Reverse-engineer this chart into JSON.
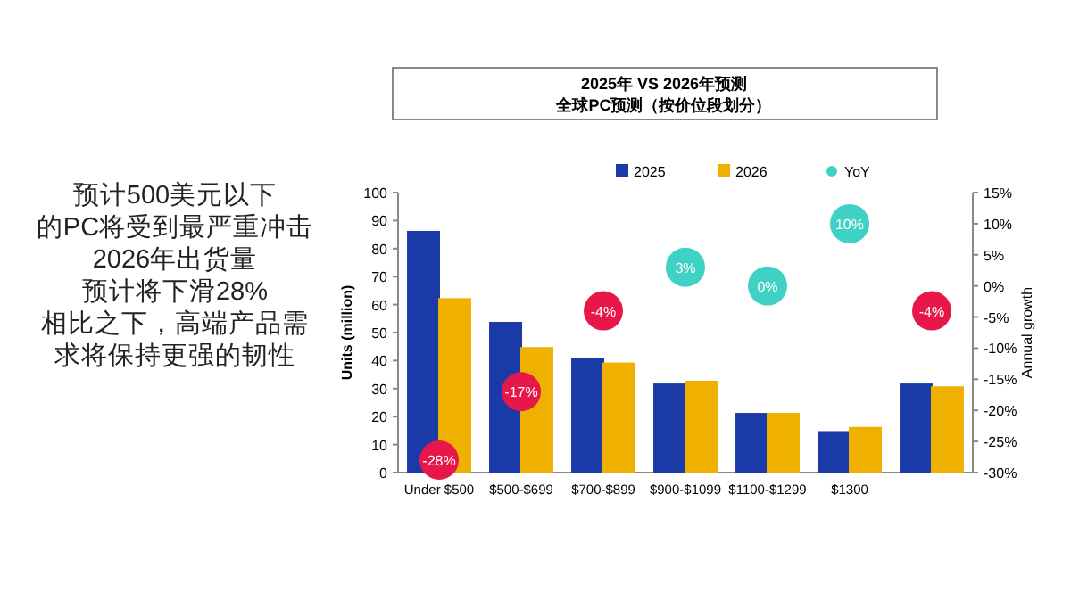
{
  "chart_data": {
    "type": "bar",
    "title": "2025年 VS 2026年预测",
    "subtitle": "全球PC预测（按价位段划分）",
    "categories": [
      "Under $500",
      "$500-$699",
      "$700-$899",
      "$900-$1099",
      "$1100-$1299",
      "$1300",
      null
    ],
    "series": [
      {
        "name": "2025",
        "color": "#1a3aa8",
        "values": [
          86,
          53.5,
          40.5,
          31.5,
          21,
          14.5,
          31.5
        ]
      },
      {
        "name": "2026",
        "color": "#f0b000",
        "values": [
          62,
          44.5,
          39,
          32.5,
          21,
          16,
          30.5
        ]
      },
      {
        "name": "YoY",
        "type": "scatter",
        "axis": "y2",
        "color": "#3fd1c4",
        "colors": [
          "#e8174a",
          "#e8174a",
          "#e8174a",
          "#3fd1c4",
          "#3fd1c4",
          "#3fd1c4",
          "#e8174a"
        ],
        "values": [
          -28,
          -17,
          -4,
          3,
          0,
          10,
          -4
        ],
        "value_labels": [
          "-28%",
          "-17%",
          "-4%",
          "3%",
          "0%",
          "10%",
          "-4%"
        ]
      }
    ],
    "ylabel": "Units (million)",
    "y2label": "Annual growth",
    "ylim": [
      0,
      100
    ],
    "yticks": [
      0,
      10,
      20,
      30,
      40,
      50,
      60,
      70,
      80,
      90,
      100
    ],
    "y2lim": [
      -30,
      15
    ],
    "y2ticks": [
      {
        "value": -30,
        "label": "-30%"
      },
      {
        "value": -25,
        "label": "-25%"
      },
      {
        "value": -20,
        "label": "-20%"
      },
      {
        "value": -15,
        "label": "-15%"
      },
      {
        "value": -10,
        "label": "-10%"
      },
      {
        "value": -5,
        "label": "-5%"
      },
      {
        "value": 0,
        "label": "0%"
      },
      {
        "value": 5,
        "label": "5%"
      },
      {
        "value": 10,
        "label": "10%"
      },
      {
        "value": 15,
        "label": "15%"
      }
    ],
    "legend": "top",
    "grid": false,
    "annotations": [
      "预计500美元以下",
      "的PC将受到最严重冲击",
      "2026年出货量",
      "预计将下滑28%",
      "相比之下，高端产品需",
      "求将保持更强的韧性"
    ]
  }
}
